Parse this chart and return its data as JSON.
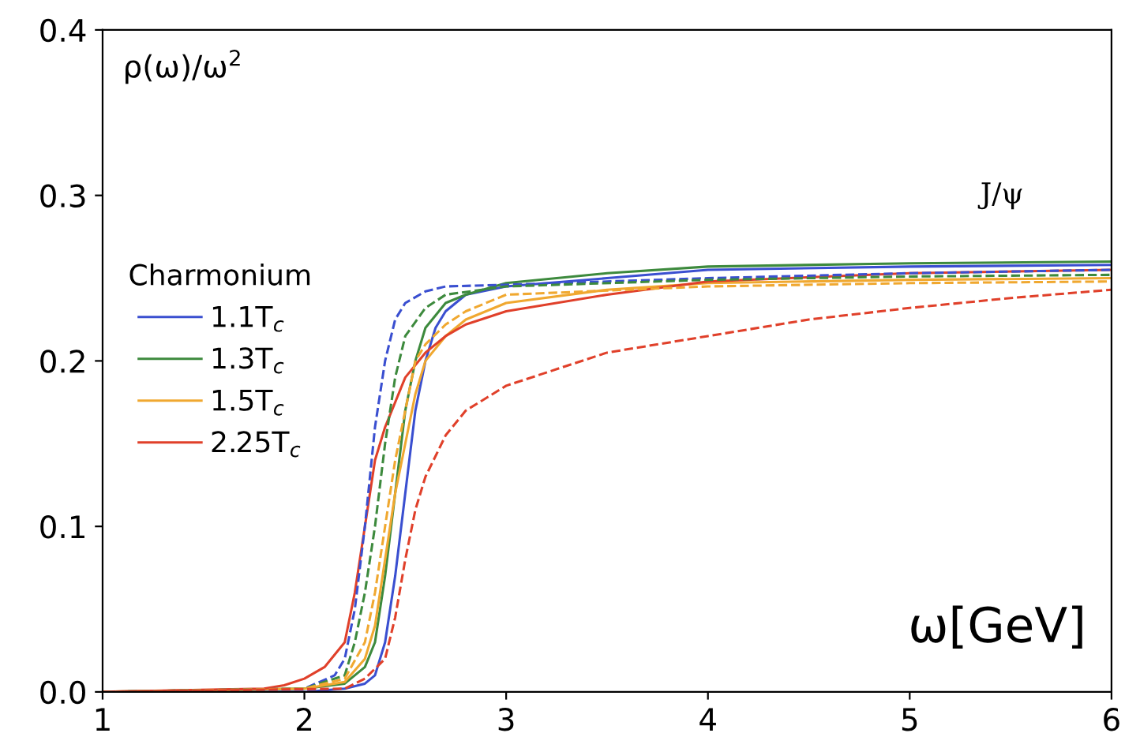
{
  "chart_data": {
    "type": "line",
    "xlabel": "ω[GeV]",
    "ylabel": "ρ(ω)/ω$^{2}$",
    "legend_title": "Charmonium",
    "legend": "left",
    "grid": false,
    "xlim": [
      1,
      6
    ],
    "ylim": [
      0,
      0.4
    ],
    "xticks": [
      1,
      2,
      3,
      4,
      5,
      6
    ],
    "yticks": [
      {
        "value": 0,
        "label": "0.0"
      },
      {
        "value": 0.1,
        "label": "0.1"
      },
      {
        "value": 0.2,
        "label": "0.2"
      },
      {
        "value": 0.3,
        "label": "0.3"
      },
      {
        "value": 0.4,
        "label": "0.4"
      }
    ],
    "annotations": [
      "J/ψ"
    ],
    "series": [
      {
        "name": "1.1T$_{c}$",
        "color": "#3a4fd0",
        "line_style": "solid",
        "x": [
          1,
          2,
          2.2,
          2.3,
          2.35,
          2.4,
          2.45,
          2.5,
          2.55,
          2.6,
          2.65,
          2.7,
          2.8,
          3,
          3.5,
          4,
          5,
          6
        ],
        "values": [
          0,
          0,
          0.002,
          0.005,
          0.01,
          0.03,
          0.07,
          0.12,
          0.17,
          0.2,
          0.22,
          0.23,
          0.24,
          0.245,
          0.25,
          0.255,
          0.257,
          0.258
        ]
      },
      {
        "name": "1.3T$_{c}$",
        "color": "#3d8a3d",
        "line_style": "solid",
        "x": [
          1,
          2,
          2.2,
          2.3,
          2.35,
          2.4,
          2.45,
          2.5,
          2.55,
          2.6,
          2.7,
          2.8,
          3,
          3.5,
          4,
          5,
          6
        ],
        "values": [
          0,
          0.002,
          0.005,
          0.015,
          0.03,
          0.07,
          0.12,
          0.17,
          0.2,
          0.22,
          0.235,
          0.24,
          0.247,
          0.253,
          0.257,
          0.259,
          0.26
        ]
      },
      {
        "name": "1.5T$_{c}$",
        "color": "#f0a830",
        "line_style": "solid",
        "x": [
          1,
          2,
          2.2,
          2.3,
          2.35,
          2.4,
          2.45,
          2.5,
          2.55,
          2.6,
          2.7,
          2.8,
          3,
          3.5,
          4,
          5,
          6
        ],
        "values": [
          0,
          0.002,
          0.006,
          0.02,
          0.04,
          0.08,
          0.12,
          0.15,
          0.18,
          0.2,
          0.215,
          0.225,
          0.235,
          0.243,
          0.247,
          0.249,
          0.25
        ]
      },
      {
        "name": "2.25T$_{c}$",
        "color": "#e0402a",
        "line_style": "solid",
        "x": [
          1,
          1.8,
          1.9,
          2,
          2.1,
          2.2,
          2.25,
          2.3,
          2.35,
          2.4,
          2.5,
          2.6,
          2.7,
          2.8,
          3,
          3.5,
          4,
          5,
          6
        ],
        "values": [
          0,
          0.002,
          0.004,
          0.008,
          0.015,
          0.03,
          0.06,
          0.1,
          0.14,
          0.16,
          0.19,
          0.205,
          0.215,
          0.222,
          0.23,
          0.24,
          0.248,
          0.253,
          0.255
        ]
      },
      {
        "color": "#3a4fd0",
        "line_style": "dashed",
        "x": [
          1,
          2,
          2.15,
          2.2,
          2.25,
          2.3,
          2.35,
          2.4,
          2.45,
          2.5,
          2.6,
          2.7,
          3,
          4,
          5,
          6
        ],
        "values": [
          0,
          0.002,
          0.01,
          0.02,
          0.05,
          0.1,
          0.16,
          0.2,
          0.225,
          0.235,
          0.242,
          0.245,
          0.246,
          0.25,
          0.253,
          0.255
        ]
      },
      {
        "color": "#3d8a3d",
        "line_style": "dashed",
        "x": [
          1,
          2,
          2.2,
          2.25,
          2.3,
          2.35,
          2.4,
          2.45,
          2.5,
          2.6,
          2.7,
          3,
          4,
          5,
          6
        ],
        "values": [
          0,
          0.002,
          0.01,
          0.03,
          0.06,
          0.1,
          0.15,
          0.19,
          0.215,
          0.232,
          0.24,
          0.245,
          0.249,
          0.251,
          0.252
        ]
      },
      {
        "color": "#f0a830",
        "line_style": "dashed",
        "x": [
          1,
          2,
          2.2,
          2.3,
          2.35,
          2.4,
          2.45,
          2.5,
          2.55,
          2.6,
          2.7,
          2.8,
          3,
          4,
          5,
          6
        ],
        "values": [
          0,
          0.002,
          0.008,
          0.03,
          0.06,
          0.1,
          0.14,
          0.17,
          0.2,
          0.21,
          0.222,
          0.23,
          0.24,
          0.245,
          0.247,
          0.248
        ]
      },
      {
        "color": "#e0402a",
        "line_style": "dashed",
        "x": [
          1,
          2.2,
          2.3,
          2.4,
          2.45,
          2.5,
          2.55,
          2.6,
          2.7,
          2.8,
          3,
          3.5,
          4,
          4.5,
          5,
          5.5,
          6
        ],
        "values": [
          0,
          0.002,
          0.008,
          0.02,
          0.045,
          0.08,
          0.11,
          0.13,
          0.155,
          0.17,
          0.185,
          0.205,
          0.215,
          0.225,
          0.232,
          0.238,
          0.243
        ]
      }
    ]
  }
}
